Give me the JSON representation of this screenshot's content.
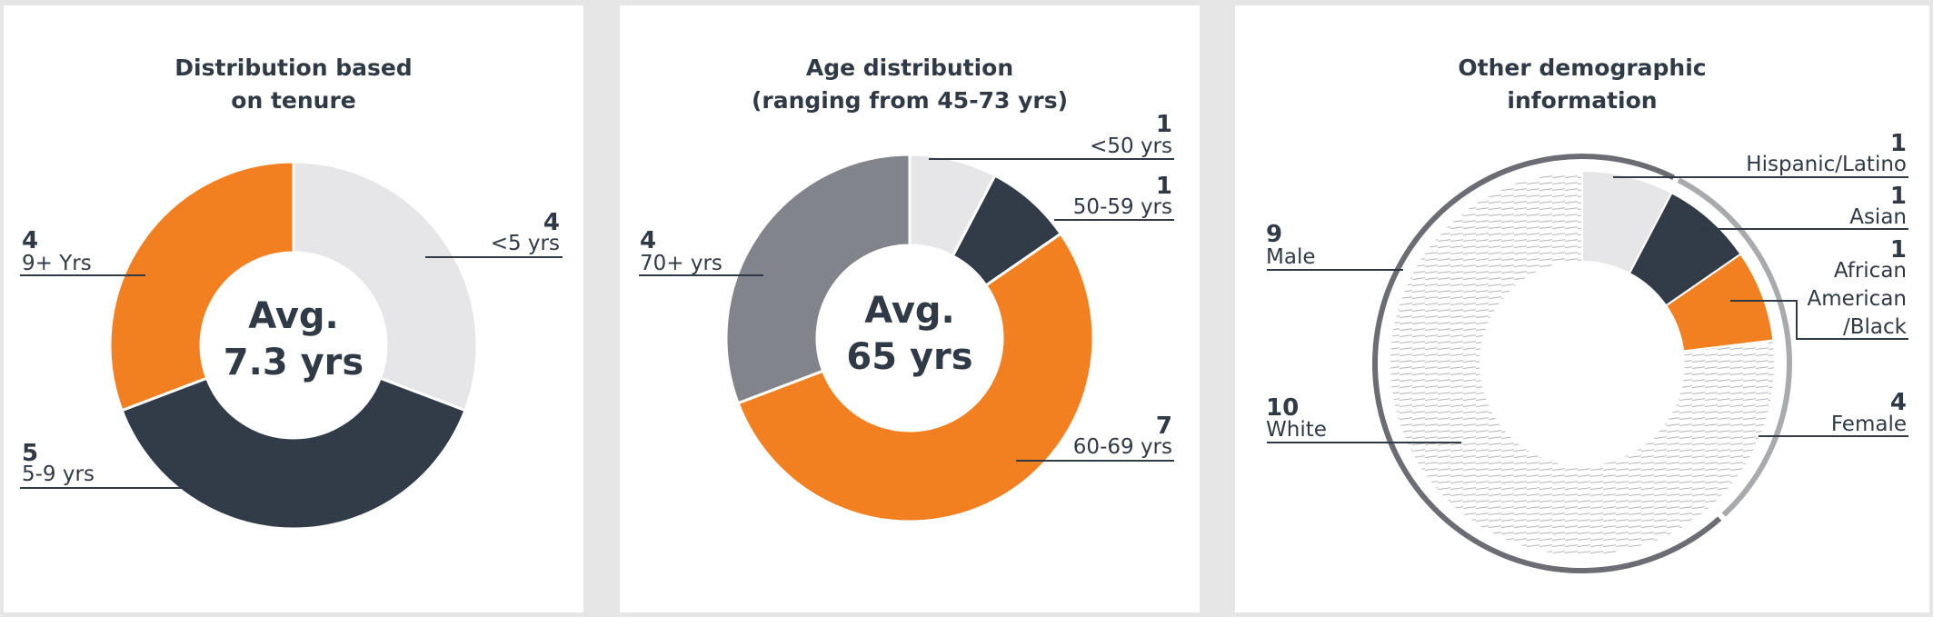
{
  "chart_data": [
    {
      "type": "donut",
      "title_lines": [
        "Distribution based",
        "on tenure"
      ],
      "center_lines": [
        "Avg.",
        "7.3 yrs"
      ],
      "slices": [
        {
          "label": "<5 yrs",
          "value": 4,
          "color": "#e6e6e8"
        },
        {
          "label": "5-9 yrs",
          "value": 5,
          "color": "#323c48"
        },
        {
          "label": "9+ Yrs",
          "value": 4,
          "color": "#f28021"
        }
      ]
    },
    {
      "type": "donut",
      "title_lines": [
        "Age distribution",
        "(ranging from 45-73 yrs)"
      ],
      "center_lines": [
        "Avg.",
        "65 yrs"
      ],
      "slices": [
        {
          "label": "<50 yrs",
          "value": 1,
          "color": "#e6e6e8"
        },
        {
          "label": "50-59 yrs",
          "value": 1,
          "color": "#323c48"
        },
        {
          "label": "60-69 yrs",
          "value": 7,
          "color": "#f28021"
        },
        {
          "label": "70+ yrs",
          "value": 4,
          "color": "#82848b"
        }
      ]
    },
    {
      "type": "donut",
      "title_lines": [
        "Other demographic",
        "information"
      ],
      "inner_slices": [
        {
          "label": "Hispanic/Latino",
          "value": 1,
          "color": "#e6e6e8"
        },
        {
          "label": "Asian",
          "value": 1,
          "color": "#323c48"
        },
        {
          "label": "African American /Black",
          "value": 1,
          "color": "#f28021"
        },
        {
          "label": "White",
          "value": 10,
          "color": "hatched"
        }
      ],
      "outer_slices": [
        {
          "label": "Female",
          "value": 4,
          "color": "#a9aaae"
        },
        {
          "label": "Male",
          "value": 9,
          "color": "#6c6d74"
        }
      ]
    }
  ]
}
